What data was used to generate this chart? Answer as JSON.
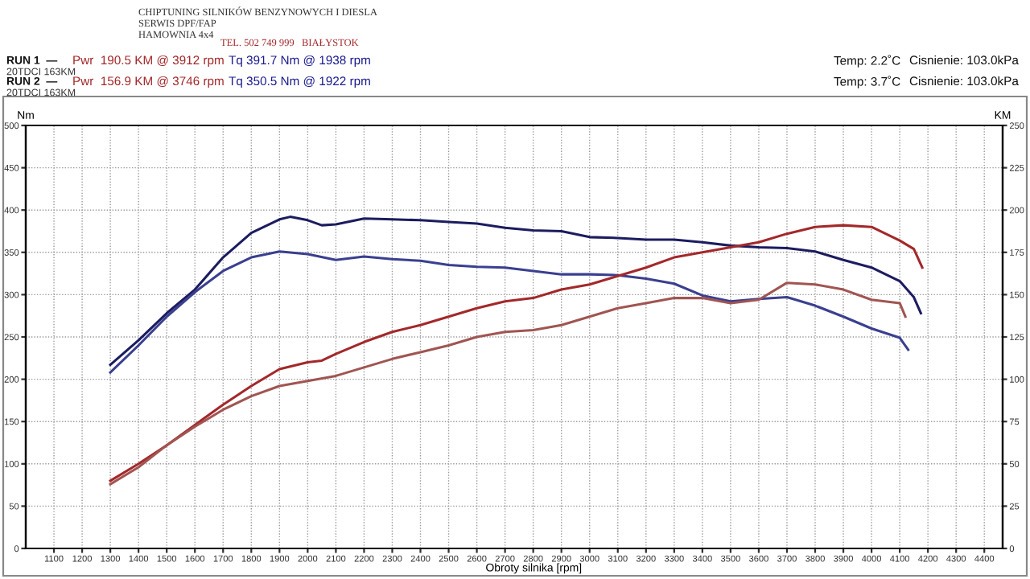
{
  "chart_data": {
    "type": "line",
    "xlabel": "Obroty silnika [rpm]",
    "ylabel": "Nm",
    "y2label": "KM",
    "xlim": [
      1000,
      4465
    ],
    "xticks": [
      1100,
      1200,
      1300,
      1400,
      1500,
      1600,
      1700,
      1800,
      1900,
      2000,
      2100,
      2200,
      2300,
      2400,
      2500,
      2600,
      2700,
      2800,
      2900,
      3000,
      3100,
      3200,
      3300,
      3400,
      3500,
      3600,
      3700,
      3800,
      3900,
      4000,
      4100,
      4200,
      4300,
      4400
    ],
    "ylim": [
      0,
      500
    ],
    "yticks": [
      0,
      50,
      100,
      150,
      200,
      250,
      300,
      350,
      400,
      450,
      500
    ],
    "y2lim": [
      0,
      250
    ],
    "y2ticks": [
      0,
      25,
      50,
      75,
      100,
      125,
      150,
      175,
      200,
      225,
      250
    ],
    "grid": true,
    "line_style": "solid",
    "series": [
      {
        "color": "#1c1c60",
        "x": [
          1300,
          1400,
          1500,
          1600,
          1700,
          1800,
          1900,
          1938,
          2000,
          2050,
          2100,
          2200,
          2300,
          2400,
          2500,
          2600,
          2700,
          2800,
          2900,
          3000,
          3100,
          3200,
          3300,
          3400,
          3500,
          3600,
          3700,
          3800,
          3900,
          4000,
          4100,
          4150,
          4175
        ],
        "values": [
          217,
          246,
          278,
          306,
          344,
          373,
          389,
          392,
          388,
          382,
          383,
          390,
          389,
          388,
          386,
          384,
          379,
          376,
          375,
          368,
          367,
          365,
          365,
          362,
          358,
          356,
          355,
          351,
          341,
          332,
          316,
          297,
          278
        ]
      },
      {
        "color": "#3a3f90",
        "x": [
          1300,
          1400,
          1500,
          1600,
          1700,
          1800,
          1900,
          2000,
          2100,
          2200,
          2300,
          2400,
          2500,
          2600,
          2700,
          2800,
          2900,
          3000,
          3100,
          3200,
          3300,
          3400,
          3500,
          3600,
          3700,
          3800,
          3900,
          4000,
          4100,
          4130
        ],
        "values": [
          208,
          240,
          274,
          303,
          328,
          344,
          351,
          348,
          341,
          345,
          342,
          340,
          335,
          333,
          332,
          328,
          324,
          324,
          323,
          319,
          313,
          299,
          292,
          295,
          297,
          287,
          274,
          260,
          249,
          235
        ]
      },
      {
        "color": "#a3282a",
        "axis": "y2",
        "x": [
          1300,
          1400,
          1500,
          1600,
          1700,
          1800,
          1900,
          2000,
          2050,
          2100,
          2200,
          2300,
          2400,
          2500,
          2600,
          2700,
          2800,
          2900,
          3000,
          3100,
          3200,
          3300,
          3400,
          3500,
          3600,
          3700,
          3800,
          3900,
          4000,
          4100,
          4150,
          4180
        ],
        "values": [
          40,
          50,
          61,
          73,
          85,
          96,
          106,
          110,
          111,
          115,
          122,
          128,
          132,
          137,
          142,
          146,
          148,
          153,
          156,
          161,
          166,
          172,
          175,
          178,
          181,
          186,
          190,
          191,
          190,
          182,
          177,
          166
        ]
      },
      {
        "color": "#a05552",
        "axis": "y2",
        "x": [
          1300,
          1400,
          1500,
          1600,
          1700,
          1800,
          1900,
          2000,
          2100,
          2200,
          2300,
          2400,
          2500,
          2600,
          2700,
          2800,
          2900,
          3000,
          3100,
          3200,
          3300,
          3400,
          3500,
          3600,
          3700,
          3800,
          3900,
          4000,
          4100,
          4120
        ],
        "values": [
          38,
          48,
          61,
          72,
          82,
          90,
          96,
          99,
          102,
          107,
          112,
          116,
          120,
          125,
          128,
          129,
          132,
          137,
          142,
          145,
          148,
          148,
          145,
          147,
          157,
          156,
          153,
          147,
          145,
          137
        ]
      }
    ],
    "annotations": [
      "CHIPTUNING SILNIKÓW BENZYNOWYCH I DIESLA",
      "SERWIS DPF/FAP",
      "HAMOWNIA 4x4",
      "TEL. 502 749 999   BIAŁYSTOK",
      "RUN 1  —",
      "Pwr  190.5 KM @ 3912 rpm",
      "Tq 391.7 Nm @ 1938 rpm",
      "Temp: 2.2˚C",
      "Cisnienie: 103.0kPa",
      "20TDCI 163KM",
      "RUN 2  —",
      "Pwr  156.9 KM @ 3746 rpm",
      "Tq 350.5 Nm @ 1922 rpm",
      "Temp: 3.7˚C",
      "Cisnienie: 103.0kPa",
      "20TDCI 163KM"
    ]
  }
}
